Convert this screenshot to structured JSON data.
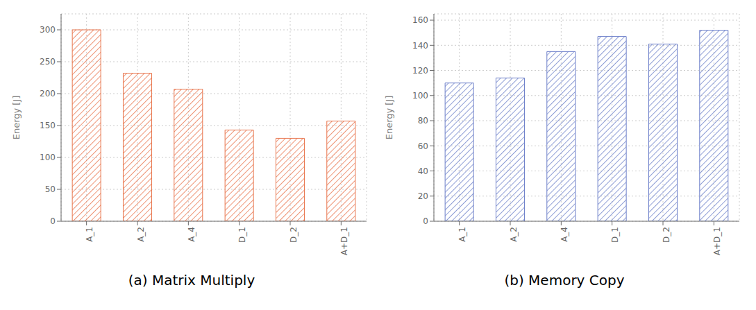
{
  "chart_data": [
    {
      "type": "bar",
      "title": "(a)  Matrix Multiply",
      "ylabel": "Energy [J]",
      "categories": [
        "A_1",
        "A_2",
        "A_4",
        "D_1",
        "D_2",
        "A+D_1"
      ],
      "values": [
        300,
        232,
        207,
        143,
        130,
        157
      ],
      "color": "#E8734A",
      "ylim": [
        0,
        325
      ],
      "yticks": [
        0,
        50,
        100,
        150,
        200,
        250,
        300
      ],
      "grid": true
    },
    {
      "type": "bar",
      "title": "(b)  Memory Copy",
      "ylabel": "Energy [J]",
      "categories": [
        "A_1",
        "A_2",
        "A_4",
        "D_1",
        "D_2",
        "A+D_1"
      ],
      "values": [
        110,
        114,
        135,
        147,
        141,
        152
      ],
      "color": "#6B7EC9",
      "ylim": [
        0,
        165
      ],
      "yticks": [
        0,
        20,
        40,
        60,
        80,
        100,
        120,
        140,
        160
      ],
      "grid": true
    }
  ]
}
